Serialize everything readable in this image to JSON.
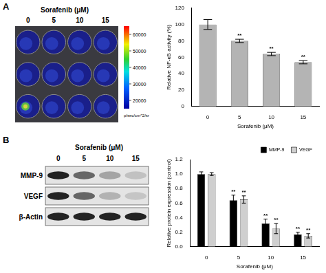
{
  "panel_labels": [
    "A",
    "B"
  ],
  "imaging": {
    "title": "Sorafenib (μM)",
    "columns": [
      "0",
      "5",
      "10",
      "15"
    ],
    "colorbar": {
      "range": [
        15000,
        65000
      ],
      "ticks": [
        60000,
        50000,
        40000,
        30000,
        20000
      ],
      "unit": "p/sec/cm^2/sr"
    }
  },
  "blot": {
    "title": "Sorafenib (μM)",
    "columns": [
      "0",
      "5",
      "10",
      "15"
    ],
    "rows": [
      {
        "label": "MMP-9",
        "intensity": [
          1.0,
          0.64,
          0.32,
          0.17
        ]
      },
      {
        "label": "VEGF",
        "intensity": [
          1.0,
          0.65,
          0.25,
          0.15
        ]
      },
      {
        "label": "β-Actin",
        "intensity": [
          1.0,
          1.0,
          1.0,
          1.0
        ]
      }
    ]
  },
  "chart_data": [
    {
      "type": "bar",
      "x_label": "Sorafenib (μM)",
      "y_label": "Relative NF-κB activity (%)",
      "categories": [
        "0",
        "5",
        "10",
        "15"
      ],
      "values": [
        100,
        80,
        64,
        54
      ],
      "errors": [
        6,
        2,
        2,
        2
      ],
      "annotations": [
        null,
        "**",
        "**",
        "**"
      ],
      "color": "#b4b4b4",
      "ylim": [
        0,
        120
      ],
      "yticks": [
        0,
        20,
        40,
        60,
        80,
        100,
        120
      ],
      "grid": false
    },
    {
      "type": "bar",
      "x_label": "Sorafenib (μM)",
      "y_label": "Relative protein expression (control)",
      "categories": [
        "0",
        "5",
        "10",
        "15"
      ],
      "series": [
        {
          "name": "MMP-9",
          "color": "#000000",
          "values": [
            1.0,
            0.64,
            0.32,
            0.17
          ],
          "errors": [
            0.03,
            0.07,
            0.06,
            0.03
          ],
          "annotations": [
            null,
            "**",
            "**",
            "**"
          ]
        },
        {
          "name": "VEGF",
          "color": "#cfcfcf",
          "values": [
            1.0,
            0.65,
            0.25,
            0.15
          ],
          "errors": [
            0.02,
            0.05,
            0.07,
            0.03
          ],
          "annotations": [
            null,
            "**",
            "**",
            "**"
          ]
        }
      ],
      "ylim": [
        0,
        1.2
      ],
      "yticks": [
        {
          "value": 0,
          "label": "0.0"
        },
        {
          "value": 0.2,
          "label": "0.2"
        },
        {
          "value": 0.4,
          "label": "0.4"
        },
        {
          "value": 0.6,
          "label": "0.6"
        },
        {
          "value": 0.8,
          "label": "0.8"
        },
        {
          "value": 1.0,
          "label": "1.0"
        },
        {
          "value": 1.2,
          "label": "1.2"
        }
      ],
      "legend": "upper right",
      "grid": false
    }
  ]
}
